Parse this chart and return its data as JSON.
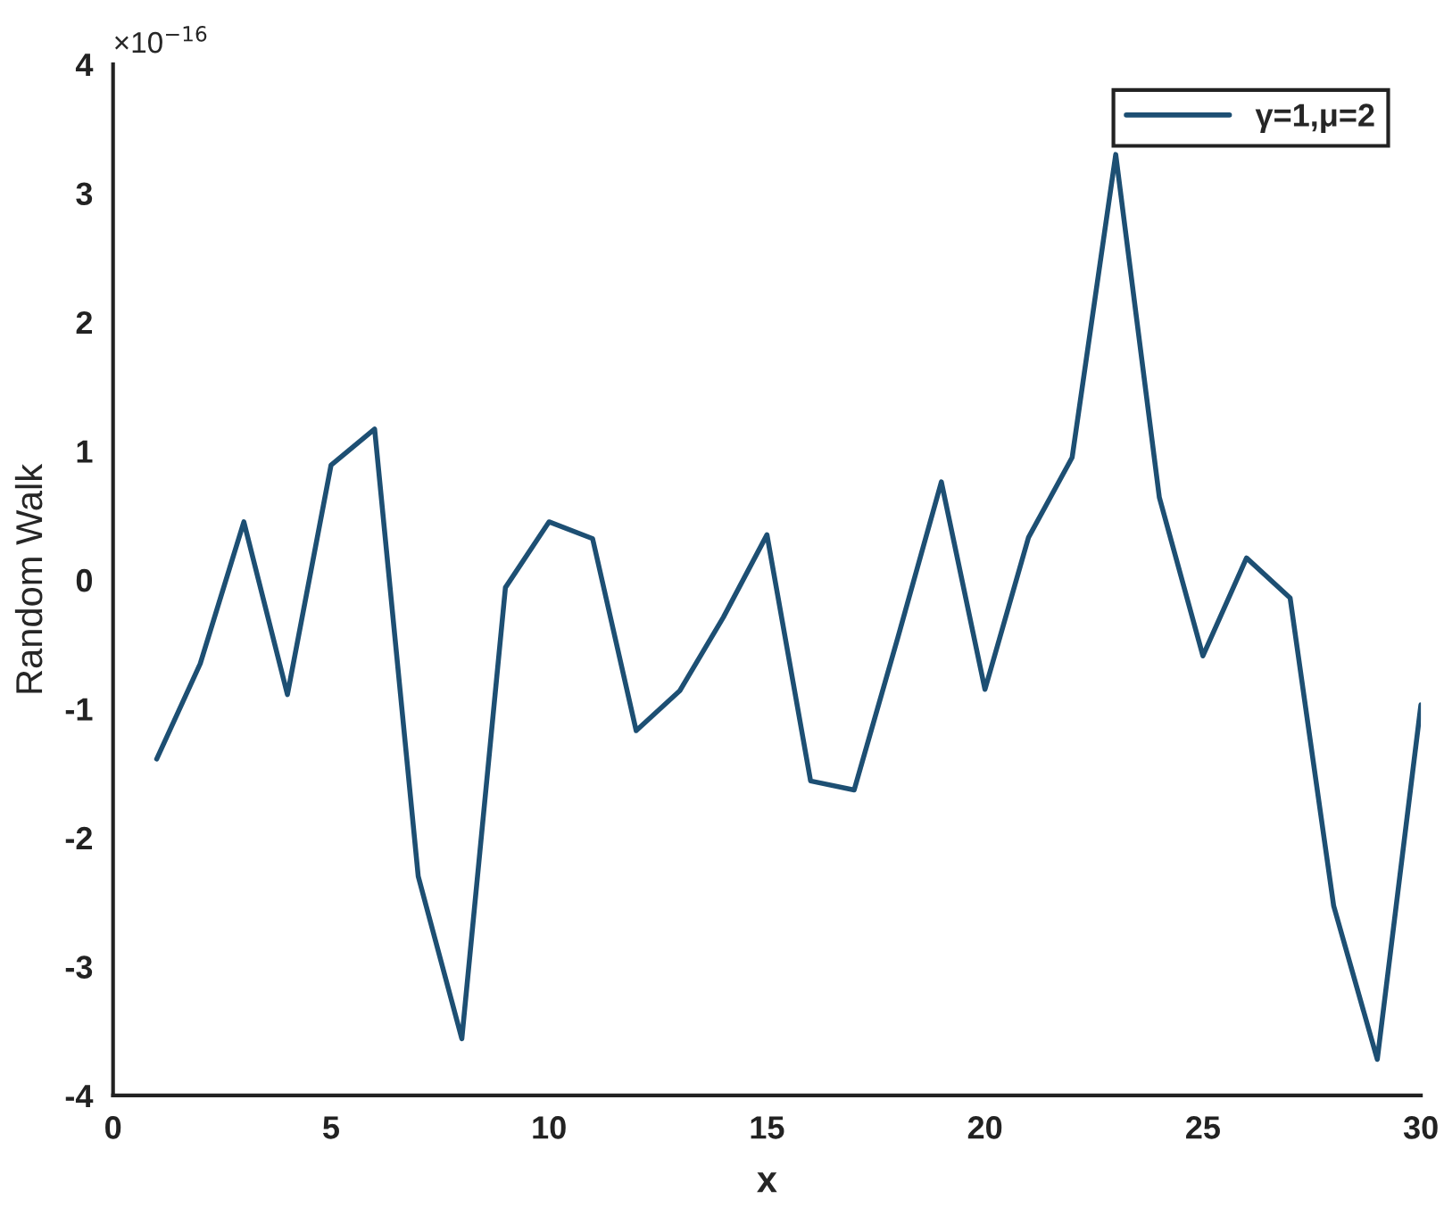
{
  "chart_data": {
    "type": "line",
    "xlabel": "x",
    "ylabel": "Random Walk",
    "annotations": [
      "×10$^{−16}$"
    ],
    "x": [
      1,
      2,
      3,
      4,
      5,
      6,
      7,
      8,
      9,
      10,
      11,
      12,
      13,
      14,
      15,
      16,
      17,
      18,
      19,
      20,
      21,
      22,
      23,
      24,
      25,
      26,
      27,
      28,
      29,
      30
    ],
    "series": [
      {
        "name": "γ=1,μ=2",
        "color": "#1d4f73",
        "values": [
          -1.39,
          -0.65,
          0.45,
          -0.89,
          0.89,
          1.17,
          -2.3,
          -3.56,
          -0.06,
          0.45,
          0.32,
          -1.17,
          -0.86,
          -0.29,
          0.35,
          -1.56,
          -1.63,
          -0.45,
          0.76,
          -0.85,
          0.33,
          0.95,
          3.3,
          0.64,
          -0.59,
          0.17,
          -0.14,
          -2.53,
          -3.72,
          -0.97
        ]
      }
    ],
    "xlim": [
      0,
      30
    ],
    "xticks": [
      0,
      5,
      10,
      15,
      20,
      25,
      30
    ],
    "ylim": [
      -4,
      4
    ],
    "yticks": [
      -4,
      -3,
      -2,
      -1,
      0,
      1,
      2,
      3,
      4
    ],
    "legend": "top right",
    "line_style": "solid"
  }
}
